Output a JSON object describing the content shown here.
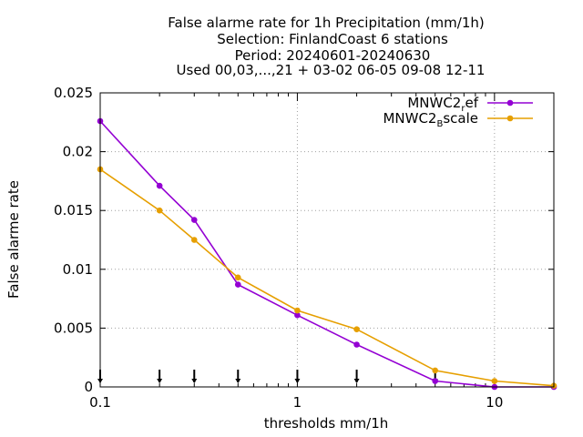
{
  "chart_data": {
    "type": "line",
    "title_lines": [
      "False alarme rate  for 1h Precipitation (mm/1h)",
      "Selection: FinlandCoast      6 stations",
      "Period: 20240601-20240630",
      "Used 00,03,...,21 + 03-02 06-05 09-08 12-11"
    ],
    "xlabel": "thresholds mm/1h",
    "ylabel": "False alarme rate",
    "x_scale": "log",
    "xlim": [
      0.1,
      20
    ],
    "ylim": [
      0,
      0.025
    ],
    "x_ticks": [
      {
        "value": 0.1,
        "label": "0.1"
      },
      {
        "value": 1,
        "label": "1"
      },
      {
        "value": 10,
        "label": "10"
      }
    ],
    "y_ticks": [
      {
        "value": 0,
        "label": "0"
      },
      {
        "value": 0.005,
        "label": "0.005"
      },
      {
        "value": 0.01,
        "label": "0.01"
      },
      {
        "value": 0.015,
        "label": "0.015"
      },
      {
        "value": 0.02,
        "label": "0.02"
      },
      {
        "value": 0.025,
        "label": "0.025"
      }
    ],
    "grid": true,
    "legend_position": "top-right",
    "x": [
      0.1,
      0.2,
      0.3,
      0.5,
      1,
      2,
      5,
      10,
      20
    ],
    "series": [
      {
        "name": "MNWC2_ref",
        "legend_main": "MNWC2",
        "legend_sub": "r",
        "legend_rest": "ef",
        "color": "#9400d3",
        "values": [
          0.0226,
          0.0171,
          0.0142,
          0.0087,
          0.0061,
          0.0036,
          0.0005,
          0.0,
          0.0
        ]
      },
      {
        "name": "MNWC2_Bscale",
        "legend_main": "MNWC2",
        "legend_sub": "B",
        "legend_rest": "scale",
        "color": "#e69f00",
        "values": [
          0.0185,
          0.015,
          0.0125,
          0.0093,
          0.0065,
          0.0049,
          0.0014,
          0.0005,
          0.0001
        ]
      }
    ],
    "threshold_markers": [
      0.1,
      0.2,
      0.3,
      0.5,
      1,
      2,
      5
    ]
  }
}
